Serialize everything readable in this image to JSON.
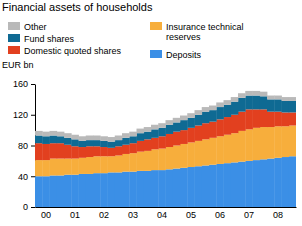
{
  "chart_data": {
    "type": "bar",
    "stacked": true,
    "title": "Financial assets of households",
    "y_axis_label": "EUR bn",
    "categories": [
      null,
      "00",
      null,
      null,
      null,
      "01",
      null,
      null,
      null,
      "02",
      null,
      null,
      null,
      "03",
      null,
      null,
      null,
      "04",
      null,
      null,
      null,
      "05",
      null,
      null,
      null,
      "06",
      null,
      null,
      null,
      "07",
      null,
      null,
      null,
      "08",
      null,
      null
    ],
    "ylim": [
      0,
      160
    ],
    "yticks": [
      0,
      40,
      80,
      120,
      160
    ],
    "series": [
      {
        "name": "Deposits",
        "color": "#3b8fe6",
        "values": [
          40,
          40,
          41,
          41,
          42,
          42,
          43,
          43,
          44,
          44,
          45,
          45,
          46,
          46,
          47,
          47,
          48,
          48,
          49,
          50,
          51,
          52,
          53,
          54,
          55,
          56,
          57,
          58,
          59,
          60,
          61,
          62,
          63,
          64,
          65,
          66
        ]
      },
      {
        "name": "Insurance technical reserves",
        "color": "#f7ae3c",
        "values": [
          21,
          21,
          22,
          22,
          21,
          21,
          21,
          22,
          22,
          22,
          21,
          22,
          23,
          24,
          25,
          26,
          27,
          28,
          29,
          30,
          31,
          32,
          33,
          34,
          35,
          36,
          37,
          38,
          40,
          41,
          42,
          42,
          41,
          41,
          40,
          40
        ]
      },
      {
        "name": "Domestic quoted shares",
        "color": "#e2401f",
        "values": [
          22,
          21,
          20,
          20,
          18,
          16,
          14,
          14,
          13,
          12,
          11,
          12,
          12,
          13,
          14,
          15,
          15,
          16,
          17,
          18,
          18,
          19,
          20,
          21,
          21,
          22,
          23,
          24,
          25,
          26,
          24,
          23,
          20,
          19,
          18,
          17
        ]
      },
      {
        "name": "Fund shares",
        "color": "#0f6a93",
        "values": [
          10,
          10,
          10,
          9,
          9,
          9,
          8,
          8,
          8,
          8,
          8,
          8,
          9,
          9,
          10,
          10,
          11,
          11,
          12,
          12,
          13,
          13,
          14,
          15,
          15,
          16,
          16,
          17,
          18,
          18,
          18,
          17,
          16,
          16,
          15,
          15
        ]
      },
      {
        "name": "Other",
        "color": "#b9b9b9",
        "values": [
          6,
          6,
          6,
          6,
          6,
          6,
          6,
          6,
          6,
          6,
          6,
          6,
          6,
          6,
          6,
          6,
          6,
          6,
          6,
          6,
          6,
          6,
          6,
          6,
          6,
          6,
          6,
          6,
          6,
          6,
          6,
          6,
          5,
          5,
          5,
          5
        ]
      }
    ]
  }
}
